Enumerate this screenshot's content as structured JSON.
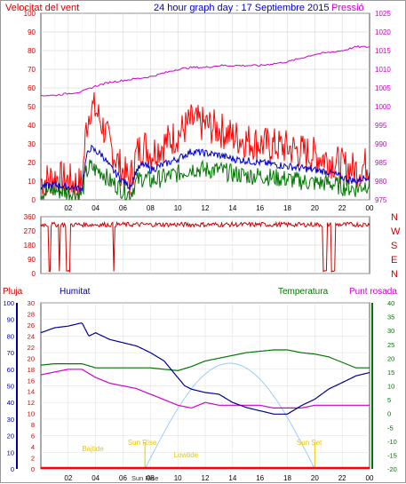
{
  "header": {
    "left": "Velocitat del vent",
    "center": "24 hour graph day : 17 Septiembre 2015",
    "right": "Pressió"
  },
  "colors": {
    "wind": "#ff0000",
    "gust": "#ff0000",
    "avg": "#0000cc",
    "green": "#007700",
    "pressure": "#cc00cc",
    "humidity": "#000099",
    "rain": "#ff0000",
    "temp": "#007700",
    "dew": "#cc00cc",
    "solar": "#99ccff",
    "sunlabel": "#e6c800"
  },
  "chart_data": [
    {
      "type": "line",
      "panel": "wind",
      "x_ticks": [
        "02",
        "04",
        "06",
        "08",
        "10",
        "12",
        "14",
        "16",
        "18",
        "20",
        "22",
        "00"
      ],
      "y_left_ticks": [
        "0",
        "10",
        "20",
        "30",
        "40",
        "50",
        "60",
        "70",
        "80",
        "90",
        "100"
      ],
      "y_right_ticks": [
        "975",
        "980",
        "985",
        "990",
        "995",
        "1000",
        "1005",
        "1010",
        "1015",
        "1020",
        "1025"
      ],
      "ylim_left": [
        0,
        100
      ],
      "ylim_right": [
        975,
        1025
      ],
      "series": [
        {
          "name": "Velocitat del vent",
          "x": [
            0,
            1,
            2,
            3,
            3.3,
            3.6,
            4,
            4.5,
            5,
            5.5,
            6,
            6.5,
            7,
            7.5,
            8,
            9,
            10,
            11,
            12,
            13,
            14,
            15,
            16,
            17,
            18,
            19,
            20,
            21,
            22,
            23,
            24
          ],
          "values": [
            10,
            12,
            10,
            8,
            38,
            50,
            48,
            40,
            30,
            22,
            15,
            10,
            25,
            30,
            25,
            30,
            35,
            42,
            40,
            38,
            34,
            32,
            30,
            29,
            28,
            26,
            24,
            22,
            18,
            16,
            20
          ]
        },
        {
          "name": "",
          "x": [
            0,
            1,
            2,
            3,
            3.3,
            3.6,
            4,
            4.5,
            5,
            5.5,
            6,
            6.5,
            7,
            7.5,
            8,
            9,
            10,
            11,
            12,
            13,
            14,
            15,
            16,
            17,
            18,
            19,
            20,
            21,
            22,
            23,
            24
          ],
          "values": [
            7,
            8,
            7,
            6,
            22,
            28,
            26,
            24,
            18,
            14,
            10,
            7,
            16,
            19,
            16,
            19,
            22,
            26,
            25,
            24,
            22,
            21,
            20,
            19,
            18,
            17,
            16,
            15,
            12,
            10,
            13
          ]
        },
        {
          "name": "",
          "x": [
            0,
            1,
            2,
            3,
            3.3,
            3.6,
            4,
            4.5,
            5,
            5.5,
            6,
            6.5,
            7,
            7.5,
            8,
            9,
            10,
            11,
            12,
            13,
            14,
            15,
            16,
            17,
            18,
            19,
            20,
            21,
            22,
            23,
            24
          ],
          "values": [
            4,
            5,
            4,
            3,
            14,
            18,
            16,
            15,
            10,
            8,
            5,
            3,
            10,
            12,
            10,
            12,
            14,
            17,
            16,
            16,
            14,
            13,
            13,
            12,
            11,
            10,
            9,
            9,
            7,
            6,
            9
          ]
        },
        {
          "name": "Pressió",
          "x": [
            0,
            1,
            2,
            3,
            4,
            5,
            6,
            7,
            8,
            9,
            10,
            11,
            12,
            13,
            14,
            15,
            16,
            17,
            18,
            19,
            20,
            21,
            22,
            23,
            24
          ],
          "values": [
            1003,
            1003,
            1003.5,
            1004,
            1005.5,
            1006.5,
            1007,
            1007.5,
            1008,
            1009,
            1010,
            1010.5,
            1010.5,
            1011,
            1011,
            1011,
            1011,
            1011.5,
            1012,
            1013,
            1014,
            1014.5,
            1015,
            1016,
            1016
          ]
        }
      ]
    },
    {
      "type": "scatter",
      "panel": "wind direction",
      "y_ticks": [
        "0",
        "90",
        "180",
        "270",
        "360"
      ],
      "y_right_labels": [
        "N",
        "W",
        "S",
        "E",
        "N"
      ],
      "ylim": [
        0,
        360
      ],
      "series": [
        {
          "name": "",
          "x": [
            0,
            1,
            1.5,
            2,
            2.5,
            3,
            4,
            5,
            5.5,
            6,
            8,
            10,
            12,
            14,
            16,
            18,
            20,
            20.5,
            21,
            21.5,
            22,
            22.5,
            23,
            24
          ],
          "values": [
            10,
            350,
            20,
            340,
            10,
            320,
            330,
            325,
            310,
            320,
            300,
            305,
            310,
            320,
            315,
            305,
            330,
            10,
            320,
            350,
            10,
            330,
            325,
            320
          ]
        }
      ]
    },
    {
      "type": "line",
      "panel": "humidity temperature",
      "legend": [
        "Pluja",
        "Humitat",
        "Temperatura",
        "Punt rosada"
      ],
      "x_ticks": [
        "02",
        "04",
        "06",
        "08",
        "10",
        "12",
        "14",
        "16",
        "18",
        "20",
        "22",
        "00"
      ],
      "y_humidity_ticks": [
        "0",
        "10",
        "20",
        "30",
        "40",
        "50",
        "60",
        "70",
        "80",
        "90",
        "100"
      ],
      "y_rain_ticks": [
        "0",
        "2",
        "4",
        "6",
        "8",
        "10",
        "12",
        "14",
        "16",
        "18",
        "20",
        "22",
        "24",
        "26",
        "28",
        "30"
      ],
      "y_temp_ticks": [
        "-20",
        "-15",
        "-10",
        "-5",
        "0",
        "5",
        "10",
        "15",
        "20",
        "25",
        "30",
        "35",
        "40"
      ],
      "series": [
        {
          "name": "Humitat",
          "x": [
            0,
            1,
            2,
            3,
            3.5,
            4,
            5,
            6,
            7,
            8,
            9,
            10,
            10.5,
            11,
            12,
            13,
            14,
            15,
            16,
            17,
            18,
            19,
            20,
            21,
            22,
            23,
            24
          ],
          "values": [
            82,
            85,
            86,
            88,
            80,
            82,
            78,
            76,
            74,
            70,
            65,
            55,
            50,
            48,
            46,
            45,
            40,
            37,
            35,
            33,
            33,
            38,
            42,
            48,
            52,
            56,
            58
          ]
        },
        {
          "name": "Temperatura",
          "x": [
            0,
            1,
            2,
            3,
            4,
            5,
            6,
            7,
            8,
            9,
            10,
            11,
            12,
            13,
            14,
            15,
            16,
            17,
            18,
            19,
            20,
            21,
            22,
            23,
            24
          ],
          "values": [
            17.5,
            18,
            18,
            18,
            16.5,
            16.5,
            16.5,
            16.5,
            16.5,
            16,
            15.5,
            17,
            19,
            20,
            21,
            22,
            22.5,
            23,
            23,
            22,
            21.5,
            20.5,
            18.5,
            16.5,
            16.5
          ]
        },
        {
          "name": "Punt rosada",
          "x": [
            0,
            1,
            2,
            3,
            4,
            5,
            6,
            7,
            8,
            9,
            10,
            11,
            12,
            13,
            14,
            15,
            16,
            17,
            18,
            19,
            20,
            21,
            22,
            23,
            24
          ],
          "values": [
            14,
            15,
            16,
            16,
            13,
            11,
            10,
            9,
            7,
            5,
            3,
            2,
            4,
            3,
            3,
            3,
            3,
            2,
            2,
            2,
            3,
            3,
            3,
            3,
            3
          ]
        },
        {
          "name": "Pluja",
          "x": [
            0,
            24
          ],
          "values": [
            0,
            0
          ]
        }
      ],
      "annotations": [
        "Sun Rise",
        "Sun Set",
        "Bajtide",
        "Lowtide",
        "Sun Rise"
      ]
    }
  ]
}
